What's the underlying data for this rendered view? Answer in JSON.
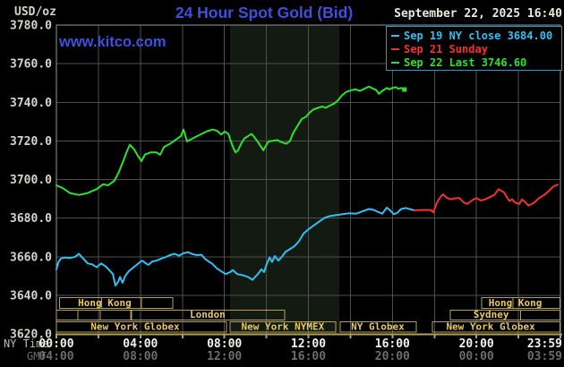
{
  "header": {
    "unit_label": "USD/oz",
    "title": "24 Hour Spot Gold (Bid)",
    "datetime": "September 22, 2025 16:40",
    "watermark": "www.kitco.com",
    "legend": [
      {
        "label": "Sep 19 NY close 3684.00",
        "color": "#2fc1f5"
      },
      {
        "label": "Sep 21 Sunday",
        "color": "#f53030"
      },
      {
        "label": "Sep 22 Last 3746.60",
        "color": "#2ae42a"
      }
    ]
  },
  "axes": {
    "y_ticks": [
      "3780.0",
      "3760.0",
      "3740.0",
      "3720.0",
      "3700.0",
      "3680.0",
      "3660.0",
      "3640.0",
      "3620.0"
    ],
    "x_rows": [
      {
        "label": "NY Time",
        "ticks": [
          "00:00",
          "04:00",
          "08:00",
          "12:00",
          "16:00",
          "20:00",
          "23:59"
        ]
      },
      {
        "label": "GMT",
        "ticks": [
          "04:00",
          "08:00",
          "12:00",
          "16:00",
          "20:00",
          "00:00",
          "03:59"
        ]
      }
    ],
    "x_tick_hours": [
      0,
      4,
      8,
      12,
      16,
      20,
      23.983
    ]
  },
  "colors": {
    "background": "#000000",
    "grid": "#4f4f4f",
    "border": "#969696",
    "axis_gold": "#b3a058",
    "session_text": "#e9c95e",
    "title_blue": "#3d50e0",
    "y_label": "#d4d4c8",
    "x_label_dim": "#bcbcb2",
    "x_value": "#f2f2ea",
    "gmt": "#6c6c6c",
    "band": "#131a12"
  },
  "chart_data": {
    "type": "line",
    "title": "24 Hour Spot Gold (Bid)",
    "xlabel": "NY Time",
    "ylabel": "USD/oz",
    "xlim": [
      0,
      24
    ],
    "ylim": [
      3620,
      3780
    ],
    "y_grid_step": 20,
    "x_grid_step_hours": 2,
    "grid": true,
    "highlight_band_hours": [
      8.27,
      13.47
    ],
    "series": [
      {
        "name": "Sep 19 NY close",
        "color": "#2fc1f5",
        "end_marker": false,
        "points": [
          [
            0,
            3653.5
          ],
          [
            0.09,
            3657
          ],
          [
            0.21,
            3659
          ],
          [
            0.38,
            3659.5
          ],
          [
            0.64,
            3659.3
          ],
          [
            0.9,
            3660
          ],
          [
            1.07,
            3661.5
          ],
          [
            1.19,
            3660
          ],
          [
            1.32,
            3658.5
          ],
          [
            1.49,
            3656.5
          ],
          [
            1.71,
            3656
          ],
          [
            1.92,
            3654.5
          ],
          [
            2.13,
            3656.5
          ],
          [
            2.34,
            3655
          ],
          [
            2.52,
            3653
          ],
          [
            2.69,
            3651
          ],
          [
            2.81,
            3645
          ],
          [
            2.94,
            3647
          ],
          [
            3.03,
            3649.5
          ],
          [
            3.15,
            3646.5
          ],
          [
            3.28,
            3650
          ],
          [
            3.45,
            3652.5
          ],
          [
            3.62,
            3654
          ],
          [
            3.79,
            3655.5
          ],
          [
            3.96,
            3657
          ],
          [
            4.09,
            3658
          ],
          [
            4.26,
            3656.5
          ],
          [
            4.39,
            3655.8
          ],
          [
            4.56,
            3657.5
          ],
          [
            4.77,
            3658
          ],
          [
            4.99,
            3659
          ],
          [
            5.2,
            3659.8
          ],
          [
            5.41,
            3660.8
          ],
          [
            5.63,
            3661.5
          ],
          [
            5.84,
            3660.5
          ],
          [
            6.05,
            3661.8
          ],
          [
            6.27,
            3662.3
          ],
          [
            6.48,
            3661.3
          ],
          [
            6.69,
            3660.8
          ],
          [
            6.91,
            3661
          ],
          [
            7.08,
            3658.8
          ],
          [
            7.25,
            3657.5
          ],
          [
            7.42,
            3656.3
          ],
          [
            7.63,
            3654
          ],
          [
            7.84,
            3652.5
          ],
          [
            8.06,
            3651
          ],
          [
            8.27,
            3652
          ],
          [
            8.4,
            3653
          ],
          [
            8.61,
            3651
          ],
          [
            8.91,
            3650.3
          ],
          [
            9.12,
            3649.5
          ],
          [
            9.34,
            3648
          ],
          [
            9.46,
            3649.5
          ],
          [
            9.59,
            3651
          ],
          [
            9.76,
            3653.5
          ],
          [
            9.89,
            3652
          ],
          [
            10.02,
            3656.5
          ],
          [
            10.15,
            3659.5
          ],
          [
            10.27,
            3657.3
          ],
          [
            10.4,
            3660.3
          ],
          [
            10.57,
            3658
          ],
          [
            10.74,
            3660
          ],
          [
            10.91,
            3662.5
          ],
          [
            11.13,
            3664
          ],
          [
            11.34,
            3665.5
          ],
          [
            11.55,
            3668
          ],
          [
            11.77,
            3672
          ],
          [
            11.98,
            3674
          ],
          [
            12.23,
            3676
          ],
          [
            12.49,
            3678
          ],
          [
            12.75,
            3680
          ],
          [
            13,
            3681
          ],
          [
            13.3,
            3681.5
          ],
          [
            13.64,
            3682
          ],
          [
            13.94,
            3682.5
          ],
          [
            14.28,
            3682.3
          ],
          [
            14.58,
            3683.5
          ],
          [
            14.88,
            3684.7
          ],
          [
            15.09,
            3684.3
          ],
          [
            15.31,
            3683.2
          ],
          [
            15.52,
            3682.3
          ],
          [
            15.73,
            3685.4
          ],
          [
            15.86,
            3684.3
          ],
          [
            16.07,
            3682
          ],
          [
            16.24,
            3682.8
          ],
          [
            16.41,
            3684.7
          ],
          [
            16.63,
            3685.2
          ],
          [
            16.84,
            3684.6
          ],
          [
            17.05,
            3684
          ]
        ]
      },
      {
        "name": "Sep 21 Sunday",
        "color": "#f53030",
        "end_marker": false,
        "points": [
          [
            17.05,
            3684
          ],
          [
            17.35,
            3684.2
          ],
          [
            17.61,
            3684.2
          ],
          [
            17.82,
            3684.2
          ],
          [
            17.95,
            3683
          ],
          [
            18.08,
            3687
          ],
          [
            18.2,
            3689.5
          ],
          [
            18.33,
            3691.5
          ],
          [
            18.42,
            3692.3
          ],
          [
            18.59,
            3690.5
          ],
          [
            18.76,
            3689.7
          ],
          [
            18.97,
            3690.2
          ],
          [
            19.18,
            3690.4
          ],
          [
            19.4,
            3688.1
          ],
          [
            19.57,
            3687.3
          ],
          [
            19.78,
            3689.1
          ],
          [
            19.99,
            3690.4
          ],
          [
            20.21,
            3689.1
          ],
          [
            20.42,
            3689.7
          ],
          [
            20.63,
            3690.8
          ],
          [
            20.85,
            3692
          ],
          [
            21.06,
            3695
          ],
          [
            21.19,
            3694
          ],
          [
            21.31,
            3693.3
          ],
          [
            21.44,
            3691
          ],
          [
            21.57,
            3688.9
          ],
          [
            21.7,
            3689.7
          ],
          [
            21.83,
            3688.1
          ],
          [
            22.04,
            3687.3
          ],
          [
            22.17,
            3689.7
          ],
          [
            22.34,
            3688.1
          ],
          [
            22.47,
            3686.5
          ],
          [
            22.64,
            3687.3
          ],
          [
            22.76,
            3688.1
          ],
          [
            22.98,
            3690.4
          ],
          [
            23.11,
            3691.2
          ],
          [
            23.23,
            3692
          ],
          [
            23.4,
            3693.5
          ],
          [
            23.53,
            3695
          ],
          [
            23.7,
            3696.6
          ],
          [
            23.87,
            3697.3
          ]
        ]
      },
      {
        "name": "Sep 22 Last",
        "color": "#2ae42a",
        "end_marker": true,
        "points": [
          [
            0,
            3697
          ],
          [
            0.3,
            3695.5
          ],
          [
            0.64,
            3693
          ],
          [
            1.07,
            3692
          ],
          [
            1.49,
            3693
          ],
          [
            1.92,
            3695
          ],
          [
            2.22,
            3697.5
          ],
          [
            2.47,
            3697
          ],
          [
            2.77,
            3699.5
          ],
          [
            2.98,
            3704
          ],
          [
            3.2,
            3710
          ],
          [
            3.37,
            3715
          ],
          [
            3.5,
            3718
          ],
          [
            3.71,
            3715.5
          ],
          [
            3.92,
            3711.5
          ],
          [
            4.05,
            3709.5
          ],
          [
            4.22,
            3713
          ],
          [
            4.48,
            3714
          ],
          [
            4.77,
            3714
          ],
          [
            4.94,
            3712.8
          ],
          [
            5.12,
            3716.8
          ],
          [
            5.41,
            3718.5
          ],
          [
            5.67,
            3720.5
          ],
          [
            5.93,
            3722.5
          ],
          [
            6.05,
            3725.9
          ],
          [
            6.22,
            3719.7
          ],
          [
            6.61,
            3722
          ],
          [
            6.91,
            3723.6
          ],
          [
            7.2,
            3725.1
          ],
          [
            7.46,
            3725.9
          ],
          [
            7.67,
            3725.1
          ],
          [
            7.84,
            3723.3
          ],
          [
            8.01,
            3724.8
          ],
          [
            8.19,
            3723.6
          ],
          [
            8.31,
            3719.7
          ],
          [
            8.44,
            3715.9
          ],
          [
            8.53,
            3714
          ],
          [
            8.65,
            3715.1
          ],
          [
            8.82,
            3719
          ],
          [
            8.95,
            3721.3
          ],
          [
            9.12,
            3722.4
          ],
          [
            9.29,
            3723.6
          ],
          [
            9.42,
            3722
          ],
          [
            9.55,
            3720.1
          ],
          [
            9.72,
            3717.4
          ],
          [
            9.85,
            3715.1
          ],
          [
            9.97,
            3717.4
          ],
          [
            10.1,
            3719.7
          ],
          [
            10.32,
            3720.1
          ],
          [
            10.53,
            3720.4
          ],
          [
            10.74,
            3719.2
          ],
          [
            10.95,
            3718.5
          ],
          [
            11.13,
            3720.1
          ],
          [
            11.25,
            3723.6
          ],
          [
            11.42,
            3726.7
          ],
          [
            11.55,
            3729
          ],
          [
            11.68,
            3731.3
          ],
          [
            11.89,
            3732.5
          ],
          [
            12.06,
            3734.7
          ],
          [
            12.23,
            3736.2
          ],
          [
            12.45,
            3737.1
          ],
          [
            12.66,
            3737.8
          ],
          [
            12.83,
            3737.1
          ],
          [
            13,
            3738.2
          ],
          [
            13.22,
            3739.3
          ],
          [
            13.39,
            3740.8
          ],
          [
            13.6,
            3743.6
          ],
          [
            13.81,
            3745.4
          ],
          [
            14.02,
            3746.2
          ],
          [
            14.24,
            3746.7
          ],
          [
            14.45,
            3745.9
          ],
          [
            14.66,
            3747
          ],
          [
            14.88,
            3748.2
          ],
          [
            15.01,
            3747.4
          ],
          [
            15.22,
            3746.4
          ],
          [
            15.35,
            3744.4
          ],
          [
            15.52,
            3745.9
          ],
          [
            15.73,
            3747.4
          ],
          [
            15.86,
            3746.7
          ],
          [
            15.99,
            3747.4
          ],
          [
            16.16,
            3747.8
          ],
          [
            16.29,
            3747
          ],
          [
            16.41,
            3747.4
          ],
          [
            16.55,
            3746.6
          ]
        ]
      }
    ],
    "sessions": [
      {
        "row": 1,
        "start": 0.15,
        "end": 5.55,
        "label": "Hong Kong",
        "dividers": [
          2.15,
          4.05
        ],
        "label_center": 2.3
      },
      {
        "row": 1,
        "start": 20.25,
        "end": 23.98,
        "label": "Hong Kong",
        "dividers": [
          21.75
        ],
        "label_center": 21.85
      },
      {
        "row": 2,
        "start": 0,
        "end": 1.02,
        "label": "",
        "dividers": [],
        "label_center": null
      },
      {
        "row": 2,
        "start": 1.02,
        "end": 2.09,
        "label": "",
        "dividers": [],
        "label_center": null
      },
      {
        "row": 2,
        "start": 2.09,
        "end": 3.54,
        "label": "",
        "dividers": [],
        "label_center": null
      },
      {
        "row": 2,
        "start": 3.58,
        "end": 10.87,
        "label": "London",
        "dividers": [],
        "label_center": 7.2
      },
      {
        "row": 2,
        "start": 18.76,
        "end": 23.98,
        "label": "Sydney",
        "dividers": [
          22.1
        ],
        "label_center": 20.7
      },
      {
        "row": 3,
        "start": 0,
        "end": 8.1,
        "label": "New York Globex",
        "dividers": [],
        "label_center": 3.75
      },
      {
        "row": 3,
        "start": 8.27,
        "end": 13.3,
        "label": "New York NYMEX",
        "dividers": [],
        "label_center": 10.78
      },
      {
        "row": 3,
        "start": 13.51,
        "end": 17.14,
        "label": "NY Globex",
        "dividers": [],
        "label_center": 15.3
      },
      {
        "row": 3,
        "start": 17.9,
        "end": 23.98,
        "label": "New York Globex",
        "dividers": [],
        "label_center": 20.68
      }
    ]
  }
}
